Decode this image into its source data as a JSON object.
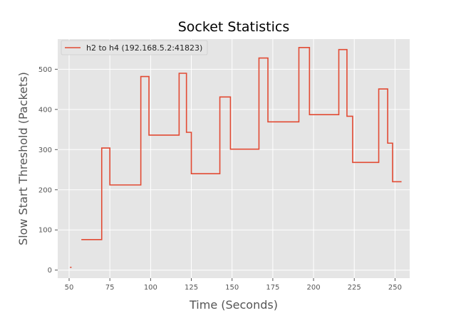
{
  "chart_data": {
    "type": "line",
    "title": "Socket Statistics",
    "xlabel": "Time (Seconds)",
    "ylabel": "Slow Start Threshold (Packets)",
    "xlim": [
      43,
      259
    ],
    "ylim": [
      -20,
      575
    ],
    "xticks": [
      50,
      75,
      100,
      125,
      150,
      175,
      200,
      225,
      250
    ],
    "yticks": [
      0,
      100,
      200,
      300,
      400,
      500
    ],
    "grid": true,
    "legend": "top-left",
    "colors": {
      "plot_bg": "#e5e5e5",
      "grid": "#ffffff",
      "line": "#e24a33"
    },
    "series": [
      {
        "name": "h2 to h4 (192.168.5.2:41823)",
        "x": [
          50.5,
          51.5,
          null,
          57.5,
          70,
          70,
          75,
          75,
          94,
          94,
          99,
          99,
          117.5,
          117.5,
          122,
          122,
          125,
          125,
          142.5,
          142.5,
          149,
          149,
          166.5,
          166.5,
          172,
          172,
          191,
          191,
          197.5,
          197.5,
          215.5,
          215.5,
          220.5,
          220.5,
          224,
          224,
          240,
          240,
          245.5,
          245.5,
          248.5,
          248.5,
          254
        ],
        "y": [
          7,
          7,
          null,
          76,
          76,
          304,
          304,
          212,
          212,
          482,
          482,
          336,
          336,
          490,
          490,
          343,
          343,
          240,
          240,
          431,
          431,
          301,
          301,
          528,
          528,
          369,
          369,
          554,
          554,
          387,
          387,
          549,
          549,
          383,
          383,
          268,
          268,
          451,
          451,
          316,
          316,
          220,
          220
        ]
      }
    ]
  }
}
